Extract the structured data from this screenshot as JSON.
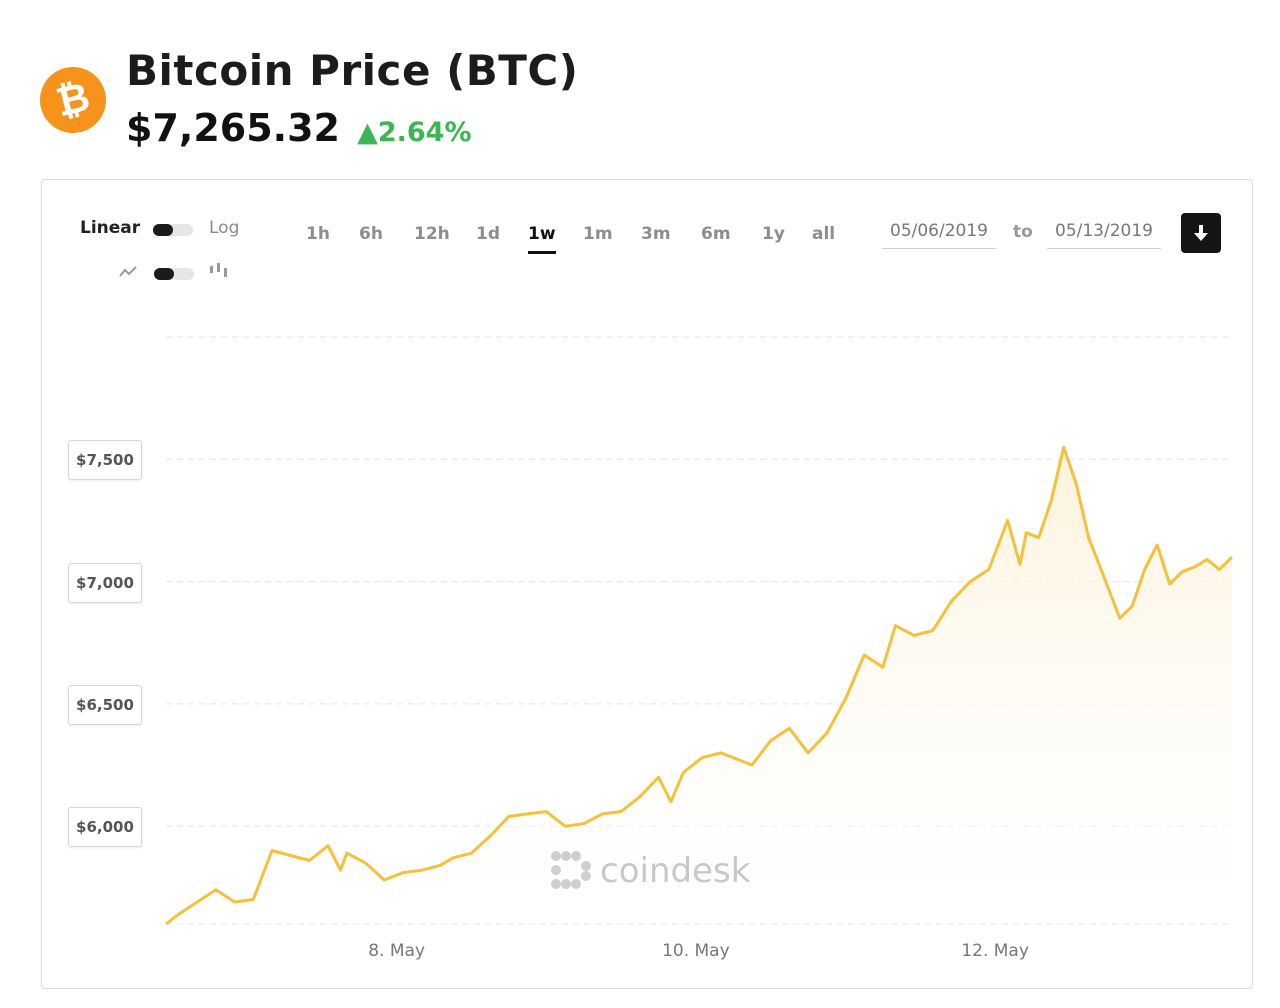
{
  "header": {
    "title": "Bitcoin Price",
    "ticker": "(BTC)",
    "price": "$7,265.32",
    "change": "2.64%",
    "change_arrow": "▲",
    "logo_icon": "bitcoin-icon",
    "logo_symbol": "₿"
  },
  "controls": {
    "scale_linear": "Linear",
    "scale_log": "Log",
    "ranges": [
      "1h",
      "6h",
      "12h",
      "1d",
      "1w",
      "1m",
      "3m",
      "6m",
      "1y",
      "all"
    ],
    "active_range": "1w",
    "date_from": "05/06/2019",
    "date_to": "05/13/2019",
    "to_label": "to",
    "download_icon": "download-arrow-icon",
    "line_icon": "line-chart-icon",
    "candle_icon": "candlestick-icon"
  },
  "watermark": "coindesk",
  "colors": {
    "line": "#f5c03a",
    "fill": "#fdf3dc",
    "brand": "#f7931a",
    "up": "#3cb552"
  },
  "chart_data": {
    "type": "area",
    "title": "",
    "xlabel": "",
    "ylabel": "",
    "y_tick_labels": [
      "$6,000",
      "$6,500",
      "$7,000",
      "$7,500"
    ],
    "y_ticks": [
      6000,
      6500,
      7000,
      7500
    ],
    "x_tick_labels": [
      "8. May",
      "10. May",
      "12. May"
    ],
    "x_ticks": [
      "2019-05-08",
      "2019-05-10",
      "2019-05-12"
    ],
    "ylim": [
      5600,
      8000
    ],
    "xlim": [
      "2019-05-06 11:00",
      "2019-05-13 14:00"
    ],
    "grid": true,
    "series": [
      {
        "x": [
          "2019-05-06 11:00",
          "2019-05-06 13:00",
          "2019-05-06 16:00",
          "2019-05-06 19:00",
          "2019-05-06 22:00",
          "2019-05-07 01:00",
          "2019-05-07 04:00",
          "2019-05-07 07:00",
          "2019-05-07 10:00",
          "2019-05-07 13:00",
          "2019-05-07 15:00",
          "2019-05-07 16:00",
          "2019-05-07 19:00",
          "2019-05-07 22:00",
          "2019-05-08 01:00",
          "2019-05-08 04:00",
          "2019-05-08 07:00",
          "2019-05-08 09:00",
          "2019-05-08 12:00",
          "2019-05-08 15:00",
          "2019-05-08 18:00",
          "2019-05-08 21:00",
          "2019-05-09 00:00",
          "2019-05-09 03:00",
          "2019-05-09 06:00",
          "2019-05-09 09:00",
          "2019-05-09 12:00",
          "2019-05-09 15:00",
          "2019-05-09 18:00",
          "2019-05-09 20:00",
          "2019-05-09 22:00",
          "2019-05-10 01:00",
          "2019-05-10 04:00",
          "2019-05-10 07:00",
          "2019-05-10 09:00",
          "2019-05-10 12:00",
          "2019-05-10 15:00",
          "2019-05-10 18:00",
          "2019-05-10 21:00",
          "2019-05-11 00:00",
          "2019-05-11 03:00",
          "2019-05-11 06:00",
          "2019-05-11 08:00",
          "2019-05-11 11:00",
          "2019-05-11 14:00",
          "2019-05-11 17:00",
          "2019-05-11 20:00",
          "2019-05-11 23:00",
          "2019-05-12 02:00",
          "2019-05-12 04:00",
          "2019-05-12 05:00",
          "2019-05-12 07:00",
          "2019-05-12 09:00",
          "2019-05-12 11:00",
          "2019-05-12 13:00",
          "2019-05-12 15:00",
          "2019-05-12 17:00",
          "2019-05-12 20:00",
          "2019-05-12 22:00",
          "2019-05-13 00:00",
          "2019-05-13 02:00",
          "2019-05-13 04:00",
          "2019-05-13 06:00",
          "2019-05-13 08:00",
          "2019-05-13 10:00",
          "2019-05-13 12:00",
          "2019-05-13 14:00"
        ],
        "values": [
          5600,
          5640,
          5690,
          5740,
          5690,
          5700,
          5900,
          5880,
          5860,
          5920,
          5820,
          5890,
          5850,
          5780,
          5810,
          5820,
          5840,
          5870,
          5890,
          5960,
          6040,
          6050,
          6060,
          6000,
          6010,
          6050,
          6060,
          6120,
          6200,
          6100,
          6220,
          6280,
          6300,
          6270,
          6250,
          6350,
          6400,
          6300,
          6380,
          6520,
          6700,
          6650,
          6820,
          6780,
          6800,
          6920,
          7000,
          7050,
          7250,
          7070,
          7200,
          7180,
          7330,
          7550,
          7400,
          7180,
          7050,
          6850,
          6900,
          7050,
          7150,
          6990,
          7040,
          7060,
          7090,
          7050,
          7100
        ]
      }
    ]
  }
}
